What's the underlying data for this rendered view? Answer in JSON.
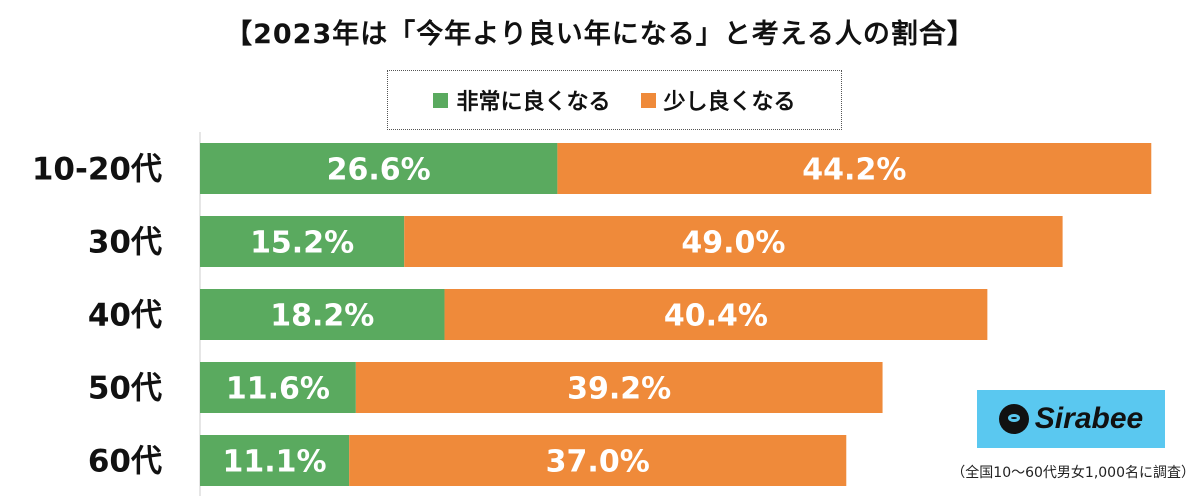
{
  "chart_data": {
    "type": "bar",
    "orientation": "horizontal",
    "stacked": true,
    "title": "【2023年は「今年より良い年になる」と考える人の割合】",
    "categories": [
      "10-20代",
      "30代",
      "40代",
      "50代",
      "60代"
    ],
    "series": [
      {
        "name": "非常に良くなる",
        "color": "#5aaa5f",
        "values": [
          26.6,
          15.2,
          18.2,
          11.6,
          11.1
        ],
        "labels": [
          "26.6%",
          "15.2%",
          "18.2%",
          "11.6%",
          "11.1%"
        ]
      },
      {
        "name": "少し良くなる",
        "color": "#ef8a3a",
        "values": [
          44.2,
          49.0,
          40.4,
          39.2,
          37.0
        ],
        "labels": [
          "44.2%",
          "49.0%",
          "40.4%",
          "39.2%",
          "37.0%"
        ]
      }
    ],
    "xlim": [
      0,
      71.3
    ],
    "legend_position": "top-center",
    "grid": false
  },
  "logo": {
    "text": "Sirabee"
  },
  "note": "（全国10～60代男女1,000名に調査）"
}
